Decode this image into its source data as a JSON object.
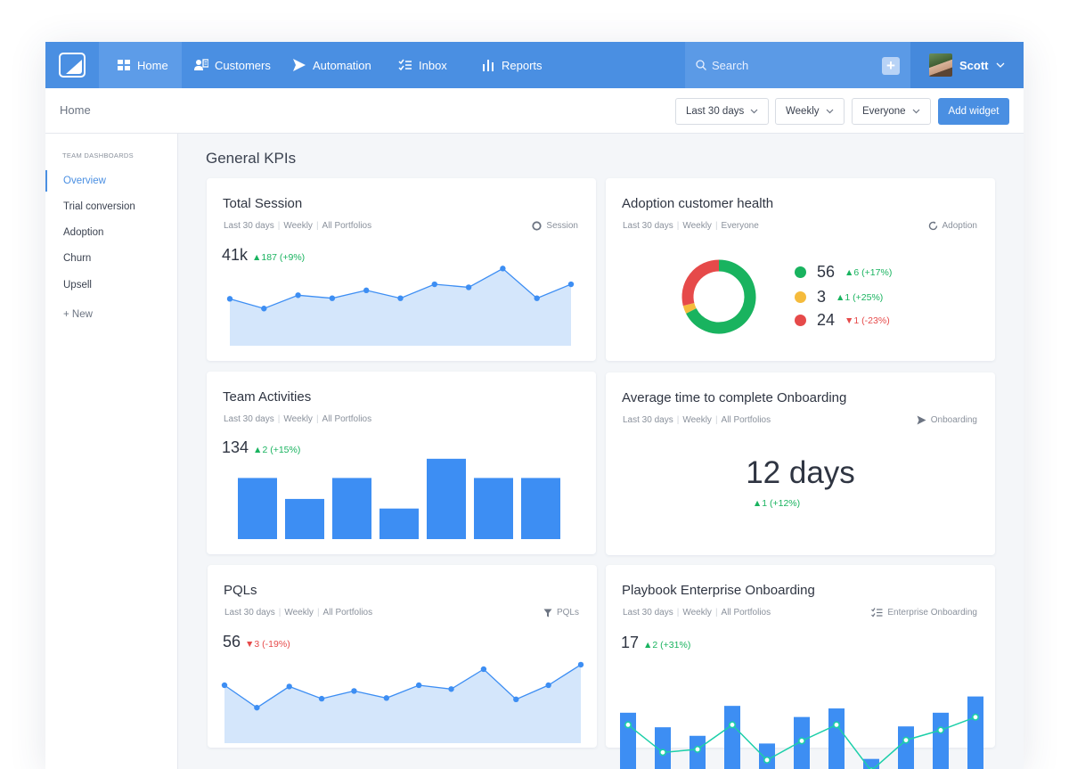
{
  "nav": {
    "items": [
      {
        "label": "Home",
        "icon": "grid-icon"
      },
      {
        "label": "Customers",
        "icon": "customers-icon"
      },
      {
        "label": "Automation",
        "icon": "send-icon"
      },
      {
        "label": "Inbox",
        "icon": "checklist-icon"
      },
      {
        "label": "Reports",
        "icon": "bar-chart-icon"
      }
    ],
    "search_placeholder": "Search",
    "add_label": "+",
    "user_name": "Scott"
  },
  "breadcrumb": "Home",
  "filters": {
    "range": "Last 30 days",
    "interval": "Weekly",
    "audience": "Everyone",
    "add_widget": "Add widget"
  },
  "sidebar": {
    "title": "TEAM DASHBOARDS",
    "items": [
      "Overview",
      "Trial conversion",
      "Adoption",
      "Churn",
      "Upsell"
    ],
    "new_label": "+  New"
  },
  "section_title": "General KPIs",
  "colors": {
    "primary": "#4a8fe2",
    "bar": "#3d8ef3",
    "area_fill": "#d4e6fb",
    "green": "#19b35f",
    "yellow": "#f5bb3c",
    "red": "#e64a4a",
    "teal": "#1ccfa9"
  },
  "cards": {
    "total_session": {
      "title": "Total Session",
      "meta": [
        "Last 30 days",
        "Weekly",
        "All Portfolios"
      ],
      "tag": "Session",
      "value": "41k",
      "delta": "▲187 (+9%)"
    },
    "adoption": {
      "title": "Adoption customer health",
      "meta": [
        "Last 30 days",
        "Weekly",
        "Everyone"
      ],
      "tag": "Adoption",
      "legend": [
        {
          "value": "56",
          "delta": "▲6 (+17%)",
          "dir": "up"
        },
        {
          "value": "3",
          "delta": "▲1 (+25%)",
          "dir": "up"
        },
        {
          "value": "24",
          "delta": "▼1 (-23%)",
          "dir": "down"
        }
      ]
    },
    "team_activities": {
      "title": "Team Activities",
      "meta": [
        "Last 30 days",
        "Weekly",
        "All Portfolios"
      ],
      "value": "134",
      "delta": "▲2 (+15%)"
    },
    "onboarding": {
      "title": "Average time to complete Onboarding",
      "meta": [
        "Last 30 days",
        "Weekly",
        "All Portfolios"
      ],
      "tag": "Onboarding",
      "value": "12 days",
      "delta": "▲1 (+12%)"
    },
    "pqls": {
      "title": "PQLs",
      "meta": [
        "Last 30 days",
        "Weekly",
        "All Portfolios"
      ],
      "tag": "PQLs",
      "value": "56",
      "delta": "▼3 (-19%)"
    },
    "playbook": {
      "title": "Playbook Enterprise Onboarding",
      "meta": [
        "Last 30 days",
        "Weekly",
        "All Portfolios"
      ],
      "tag": "Enterprise Onboarding",
      "value": "17",
      "delta": "▲2 (+31%)"
    }
  },
  "chart_data": [
    {
      "type": "area",
      "id": "total_session",
      "values": [
        48,
        32,
        54,
        49,
        62,
        49,
        72,
        67,
        98,
        49,
        72
      ]
    },
    {
      "type": "pie",
      "id": "adoption",
      "values": [
        56,
        3,
        24
      ],
      "labels": [
        "56",
        "3",
        "24"
      ],
      "colors": [
        "#19b35f",
        "#f5bb3c",
        "#e64a4a"
      ]
    },
    {
      "type": "bar",
      "id": "team_activities",
      "values": [
        70,
        46,
        70,
        35,
        92,
        70,
        70
      ]
    },
    {
      "type": "area",
      "id": "pqls",
      "values": [
        57,
        22,
        55,
        36,
        48,
        37,
        57,
        51,
        82,
        35,
        57,
        89
      ]
    },
    {
      "type": "bar",
      "id": "playbook",
      "bars": [
        71,
        54,
        44,
        79,
        35,
        66,
        76,
        17,
        55,
        71,
        90
      ],
      "line": [
        60,
        24,
        28,
        60,
        14,
        39,
        60,
        0,
        40,
        53,
        70
      ]
    }
  ]
}
